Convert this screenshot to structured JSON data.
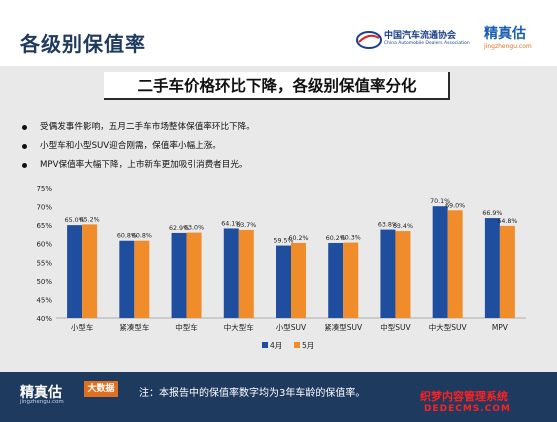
{
  "header": {
    "title": "各级别保值率",
    "org_name": "中国汽车流通协会",
    "org_name_en": "China Automobile Dealers Association",
    "brand": "精真估",
    "brand_url": "jingzhengu.com"
  },
  "subtitle": "二手车价格环比下降，各级别保值率分化",
  "bullets": [
    "受偶发事件影响，五月二手车市场整体保值率环比下降。",
    "小型车和小型SUV迎合刚需，保值率小幅上涨。",
    "MPV保值率大幅下降，上市新车更加吸引消费者目光。"
  ],
  "chart_data": {
    "type": "bar",
    "categories": [
      "小型车",
      "紧凑型车",
      "中型车",
      "中大型车",
      "小型SUV",
      "紧凑型SUV",
      "中型SUV",
      "中大型SUV",
      "MPV"
    ],
    "series": [
      {
        "name": "4月",
        "values": [
          65.0,
          60.8,
          62.9,
          64.1,
          59.5,
          60.2,
          63.8,
          70.1,
          66.9
        ],
        "labels": [
          "65.0%",
          "60.8%",
          "62.9%",
          "64.1%",
          "59.5%",
          "60.2%",
          "63.8%",
          "70.1%",
          "66.9%"
        ],
        "color": "#1f4e9e"
      },
      {
        "name": "5月",
        "values": [
          65.2,
          60.8,
          63.0,
          63.7,
          60.2,
          60.3,
          63.4,
          69.0,
          64.8
        ],
        "labels": [
          "65.2%",
          "60.8%",
          "63.0%",
          "63.7%",
          "60.2%",
          "60.3%",
          "63.4%",
          "69.0%",
          "64.8%"
        ],
        "color": "#f08c2a"
      }
    ],
    "ylim": [
      40,
      75
    ],
    "yticks": [
      "40%",
      "45%",
      "50%",
      "55%",
      "60%",
      "65%",
      "70%",
      "75%"
    ],
    "ytick_values": [
      40,
      45,
      50,
      55,
      60,
      65,
      70,
      75
    ],
    "legend_position": "bottom",
    "grid": false
  },
  "footer": {
    "brand": "精真估",
    "brand_url": "jingzhengu.com",
    "tag": "大数据",
    "note": "注：本报告中的保值率数字均为3年车龄的保值率。"
  },
  "watermark": {
    "line1": "织梦内容管理系统",
    "line2": "DEDECMS.COM"
  }
}
